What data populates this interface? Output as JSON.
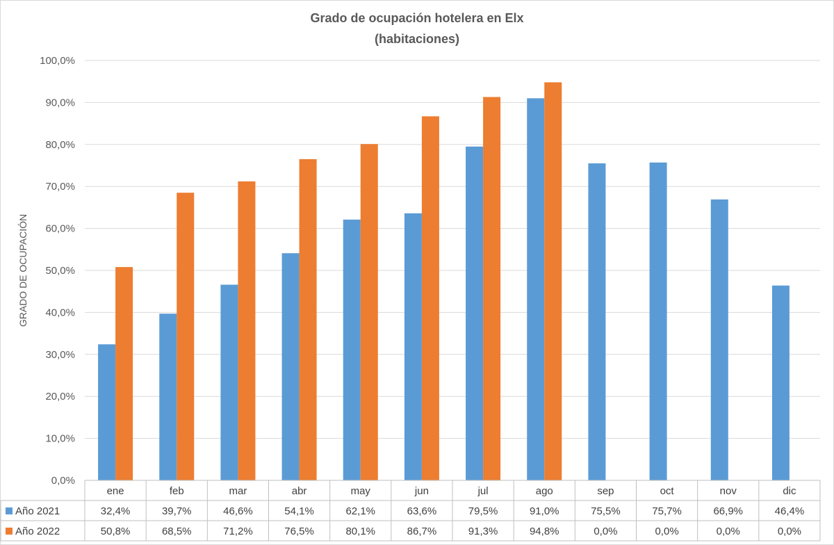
{
  "chart_data": {
    "type": "bar",
    "title": "Grado de ocupación hotelera en Elx",
    "subtitle": "(habitaciones)",
    "ylabel": "GRADO DE OCUPACIÓN",
    "xlabel": "",
    "ylim": [
      0,
      100
    ],
    "yticks": [
      "0,0%",
      "10,0%",
      "20,0%",
      "30,0%",
      "40,0%",
      "50,0%",
      "60,0%",
      "70,0%",
      "80,0%",
      "90,0%",
      "100,0%"
    ],
    "grid": true,
    "legend": "data-table",
    "categories": [
      "ene",
      "feb",
      "mar",
      "abr",
      "may",
      "jun",
      "jul",
      "ago",
      "sep",
      "oct",
      "nov",
      "dic"
    ],
    "series": [
      {
        "name": "Año 2021",
        "color": "#5B9BD5",
        "values": [
          32.4,
          39.7,
          46.6,
          54.1,
          62.1,
          63.6,
          79.5,
          91.0,
          75.5,
          75.7,
          66.9,
          46.4
        ],
        "labels": [
          "32,4%",
          "39,7%",
          "46,6%",
          "54,1%",
          "62,1%",
          "63,6%",
          "79,5%",
          "91,0%",
          "75,5%",
          "75,7%",
          "66,9%",
          "46,4%"
        ]
      },
      {
        "name": "Año 2022",
        "color": "#ED7D31",
        "values": [
          50.8,
          68.5,
          71.2,
          76.5,
          80.1,
          86.7,
          91.3,
          94.8,
          0.0,
          0.0,
          0.0,
          0.0
        ],
        "labels": [
          "50,8%",
          "68,5%",
          "71,2%",
          "76,5%",
          "80,1%",
          "86,7%",
          "91,3%",
          "94,8%",
          "0,0%",
          "0,0%",
          "0,0%",
          "0,0%"
        ]
      }
    ]
  }
}
